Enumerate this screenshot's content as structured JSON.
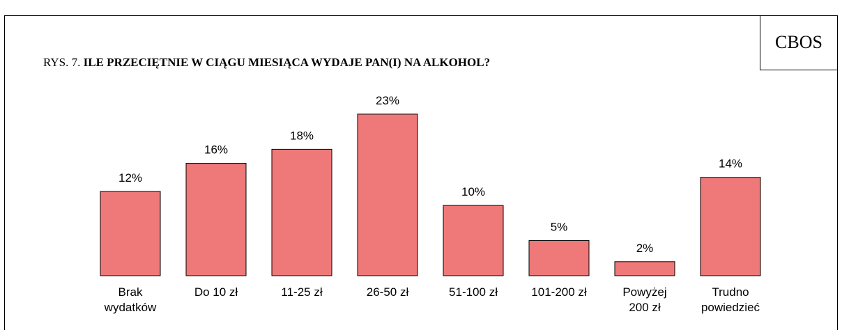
{
  "chart_data": {
    "type": "bar",
    "logo": "CBOS",
    "title_prefix": "RYS. 7.",
    "title": "ILE PRZECIĘTNIE W CIĄGU MIESIĄCA WYDAJE PAN(I) NA ALKOHOL?",
    "categories": [
      "Brak\nwydatków",
      "Do 10 zł",
      "11-25 zł",
      "26-50 zł",
      "51-100 zł",
      "101-200 zł",
      "Powyżej\n200 zł",
      "Trudno\npowiedzieć"
    ],
    "values": [
      12,
      16,
      18,
      23,
      10,
      5,
      2,
      14
    ],
    "value_labels": [
      "12%",
      "16%",
      "18%",
      "23%",
      "10%",
      "5%",
      "2%",
      "14%"
    ],
    "color": "#ef7878"
  }
}
